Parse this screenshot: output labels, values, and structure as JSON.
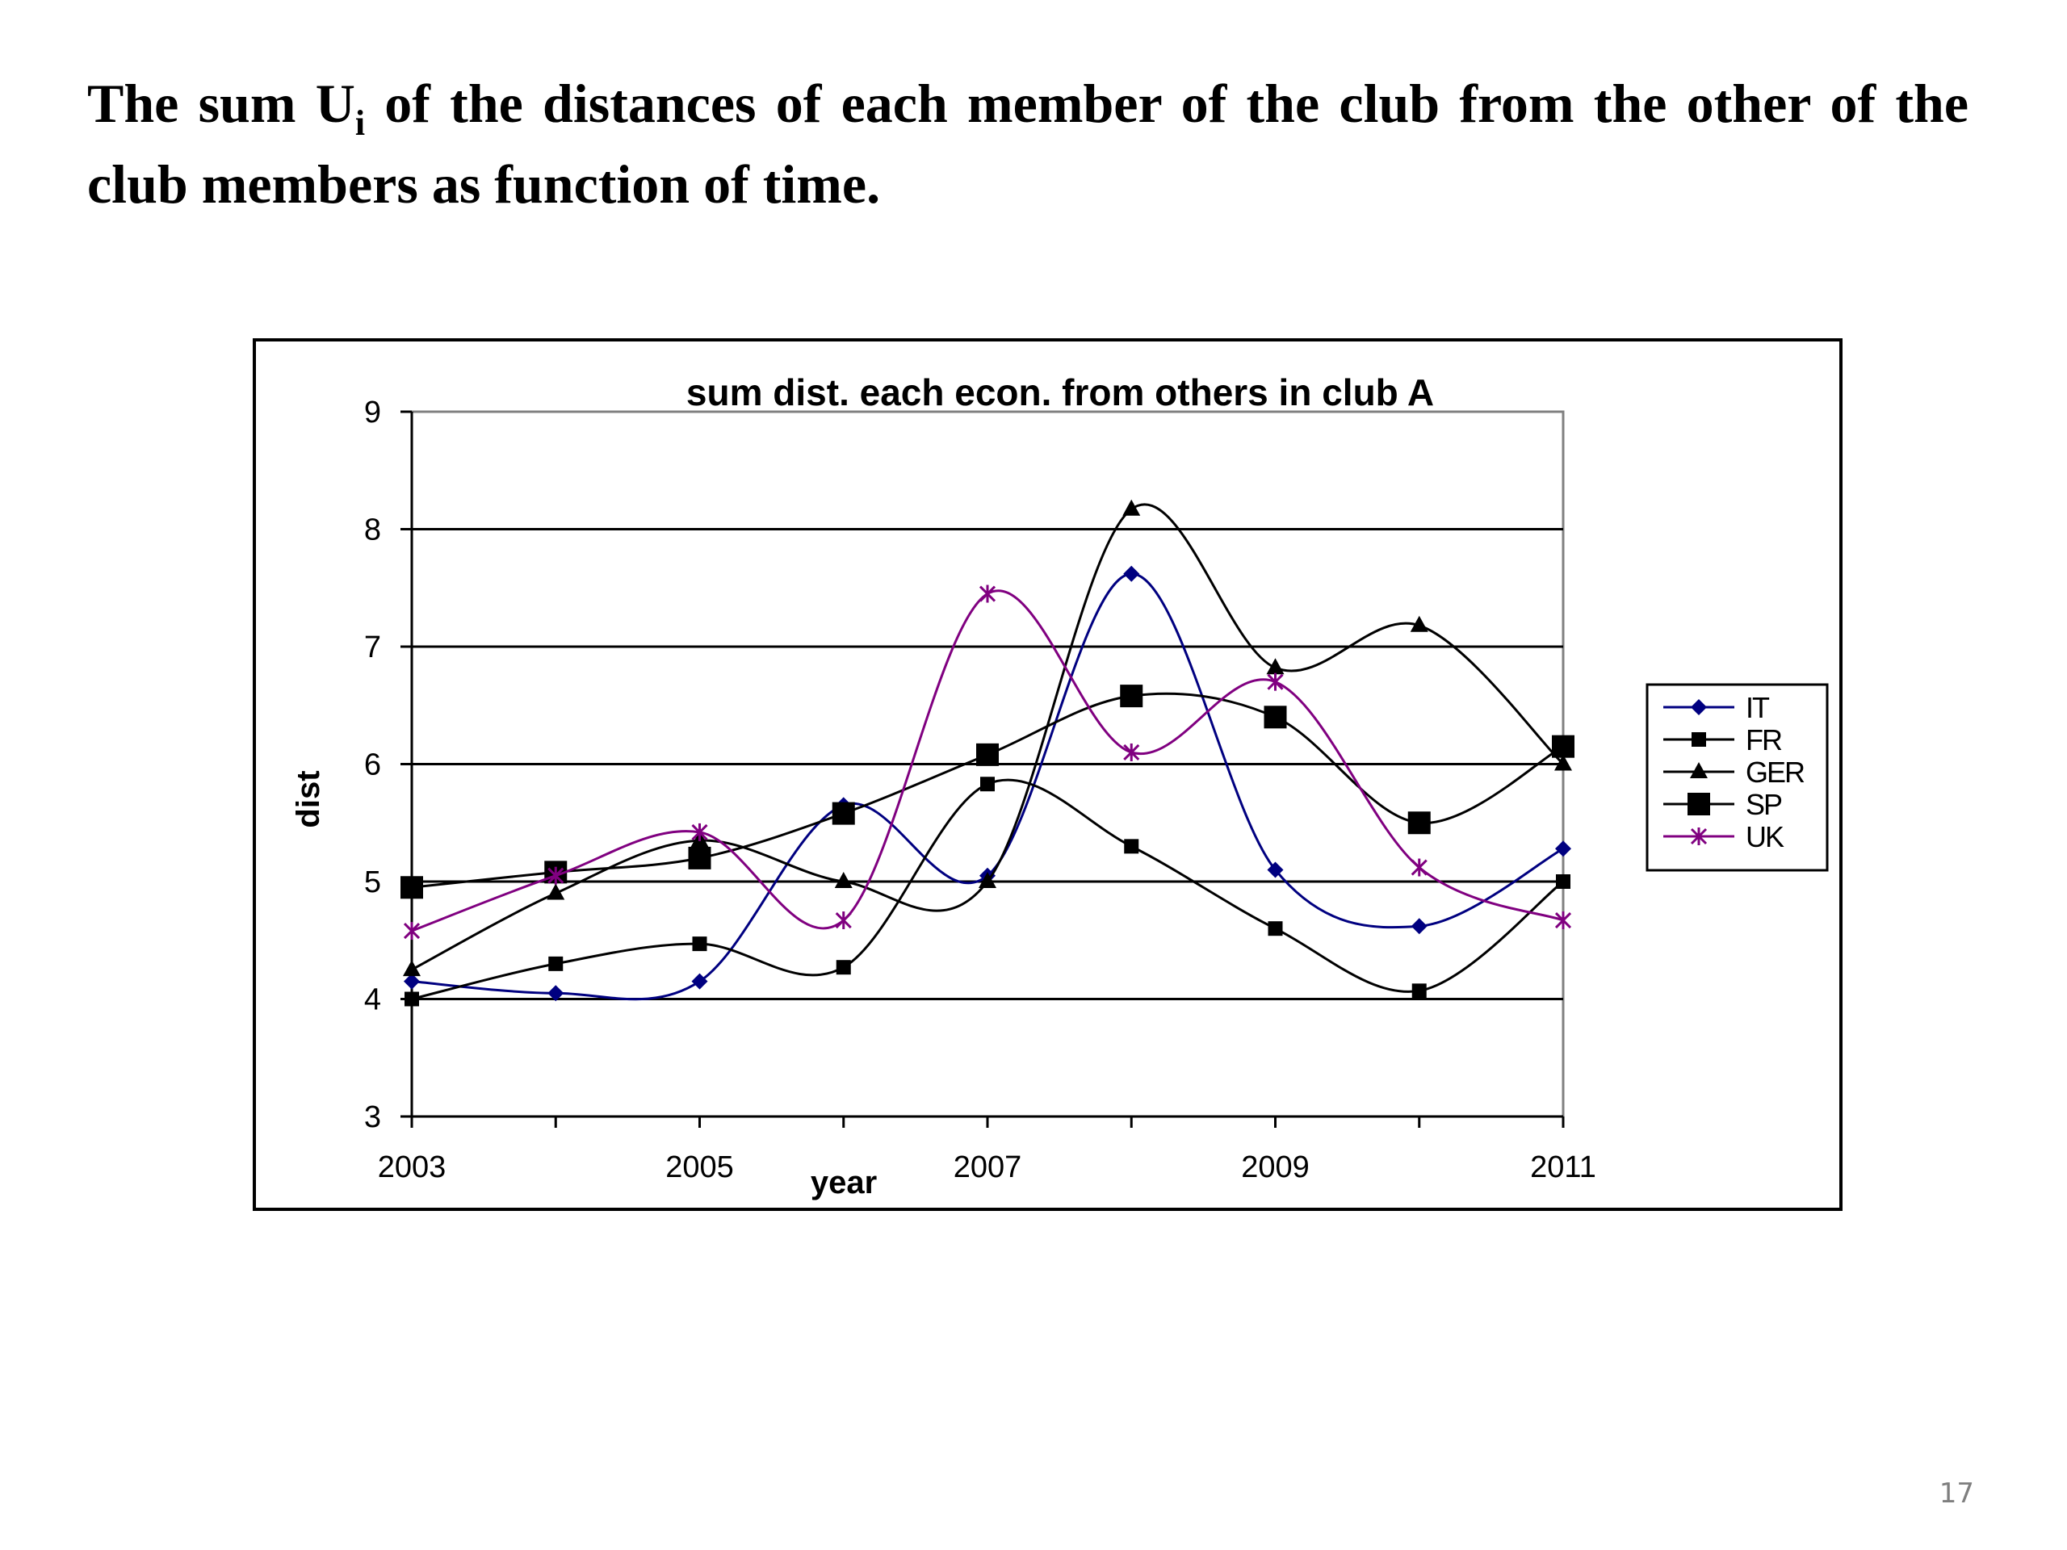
{
  "slide": {
    "title_before": "The sum U",
    "title_sub": "i",
    "title_after": " of the distances of each member of the club from the other of the club members as function of time.",
    "page_number": "17"
  },
  "chart_data": {
    "type": "line",
    "title": "sum dist. each econ. from others in club A",
    "xlabel": "year",
    "ylabel": "dist",
    "x": [
      2003,
      2004,
      2005,
      2006,
      2007,
      2008,
      2009,
      2010,
      2011
    ],
    "x_tick_labels": [
      "2003",
      "2005",
      "2007",
      "2009",
      "2011"
    ],
    "x_ticks": [
      2003,
      2005,
      2007,
      2009,
      2011
    ],
    "xlim": [
      2003,
      2011
    ],
    "ylim": [
      3,
      9
    ],
    "y_ticks": [
      3,
      4,
      5,
      6,
      7,
      8,
      9
    ],
    "grid": "horizontal",
    "smoothed": true,
    "legend_position": "right",
    "series": [
      {
        "name": "IT",
        "color": "#000080",
        "marker": "diamond",
        "values": [
          4.15,
          4.05,
          4.15,
          5.65,
          5.05,
          7.62,
          5.1,
          4.62,
          5.28
        ]
      },
      {
        "name": "FR",
        "color": "#000000",
        "marker": "square",
        "values": [
          4.0,
          4.3,
          4.47,
          4.27,
          5.83,
          5.3,
          4.6,
          4.07,
          5.0
        ]
      },
      {
        "name": "GER",
        "color": "#000000",
        "marker": "triangle",
        "values": [
          4.25,
          4.9,
          5.35,
          5.0,
          5.0,
          8.17,
          6.82,
          7.18,
          6.0
        ]
      },
      {
        "name": "SP",
        "color": "#000000",
        "marker": "square-large",
        "values": [
          4.95,
          5.08,
          5.2,
          5.58,
          6.08,
          6.58,
          6.4,
          5.5,
          6.15
        ]
      },
      {
        "name": "UK",
        "color": "#800080",
        "marker": "asterisk",
        "values": [
          4.58,
          5.05,
          5.42,
          4.67,
          7.45,
          6.1,
          6.7,
          5.12,
          4.67
        ]
      }
    ]
  }
}
